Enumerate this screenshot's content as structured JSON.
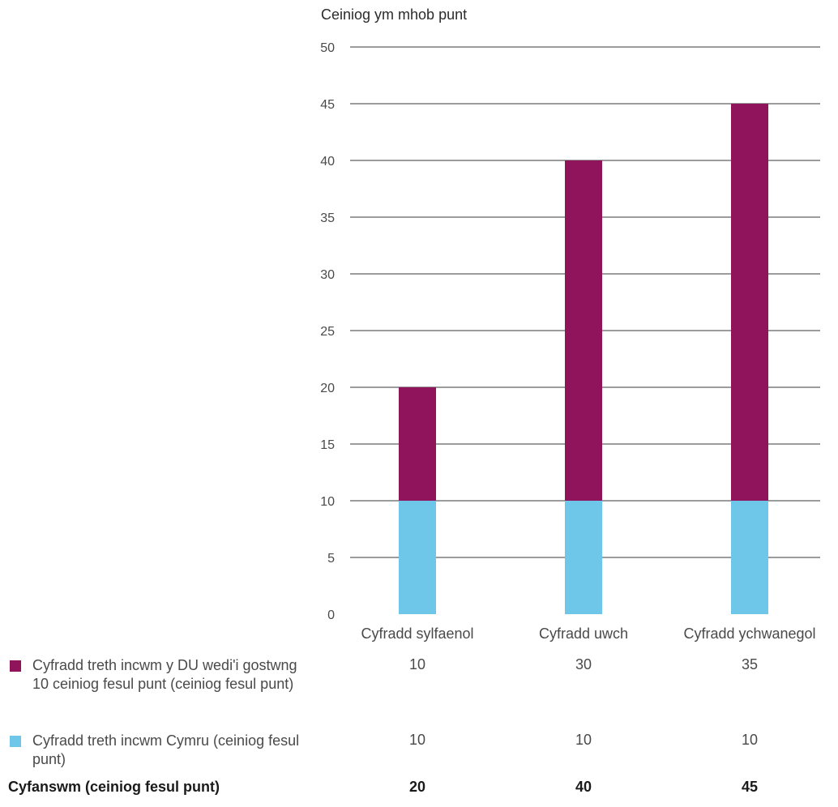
{
  "chart_data": {
    "type": "bar",
    "stacked": true,
    "ylabel": "Ceiniog ym mhob punt",
    "ylim": [
      0,
      50
    ],
    "yticks": [
      0,
      5,
      10,
      15,
      20,
      25,
      30,
      35,
      40,
      45,
      50
    ],
    "grid": true,
    "categories": [
      "Cyfradd sylfaenol",
      "Cyfradd uwch",
      "Cyfradd ychwanegol"
    ],
    "series": [
      {
        "name": "Cyfradd treth incwm Cymru (ceiniog fesul punt)",
        "values": [
          10,
          10,
          10
        ],
        "color": "#6ec6e8"
      },
      {
        "name": "Cyfradd treth incwm y DU wedi'i gostwng 10 ceiniog fesul punt (ceiniog fesul punt)",
        "values": [
          10,
          30,
          35
        ],
        "color": "#8f145b"
      }
    ],
    "table": {
      "rows": [
        {
          "series_index": 1,
          "values": [
            "10",
            "30",
            "35"
          ]
        },
        {
          "series_index": 0,
          "values": [
            "10",
            "10",
            "10"
          ]
        }
      ],
      "total": {
        "label": "Cyfanswm (ceiniog fesul punt)",
        "values": [
          "20",
          "40",
          "45"
        ]
      }
    }
  }
}
